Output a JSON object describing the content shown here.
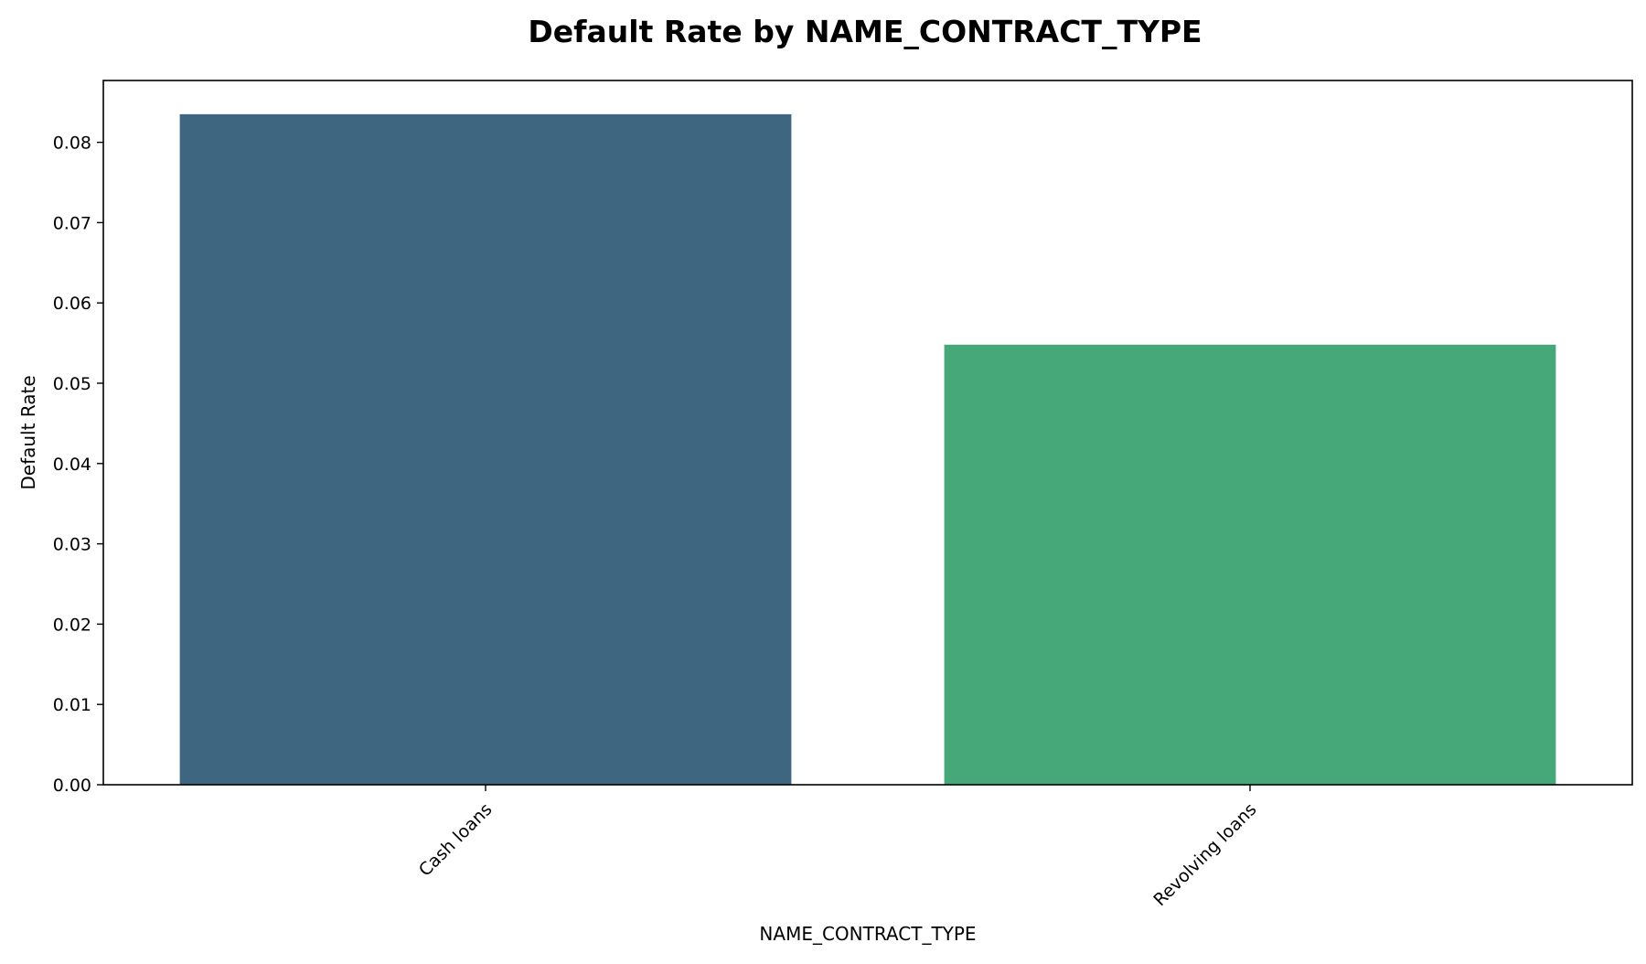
{
  "chart_data": {
    "type": "bar",
    "title": "Default Rate by NAME_CONTRACT_TYPE",
    "xlabel": "NAME_CONTRACT_TYPE",
    "ylabel": "Default Rate",
    "categories": [
      "Cash loans",
      "Revolving loans"
    ],
    "values": [
      0.0835,
      0.0548
    ],
    "colors": [
      "#3e6681",
      "#46a879"
    ],
    "ylim": [
      0,
      0.0877
    ],
    "yticks": [
      0.0,
      0.01,
      0.02,
      0.03,
      0.04,
      0.05,
      0.06,
      0.07,
      0.08
    ],
    "ytick_labels": [
      "0.00",
      "0.01",
      "0.02",
      "0.03",
      "0.04",
      "0.05",
      "0.06",
      "0.07",
      "0.08"
    ],
    "grid": false,
    "legend": "none",
    "xtick_rotation_deg": 45
  }
}
